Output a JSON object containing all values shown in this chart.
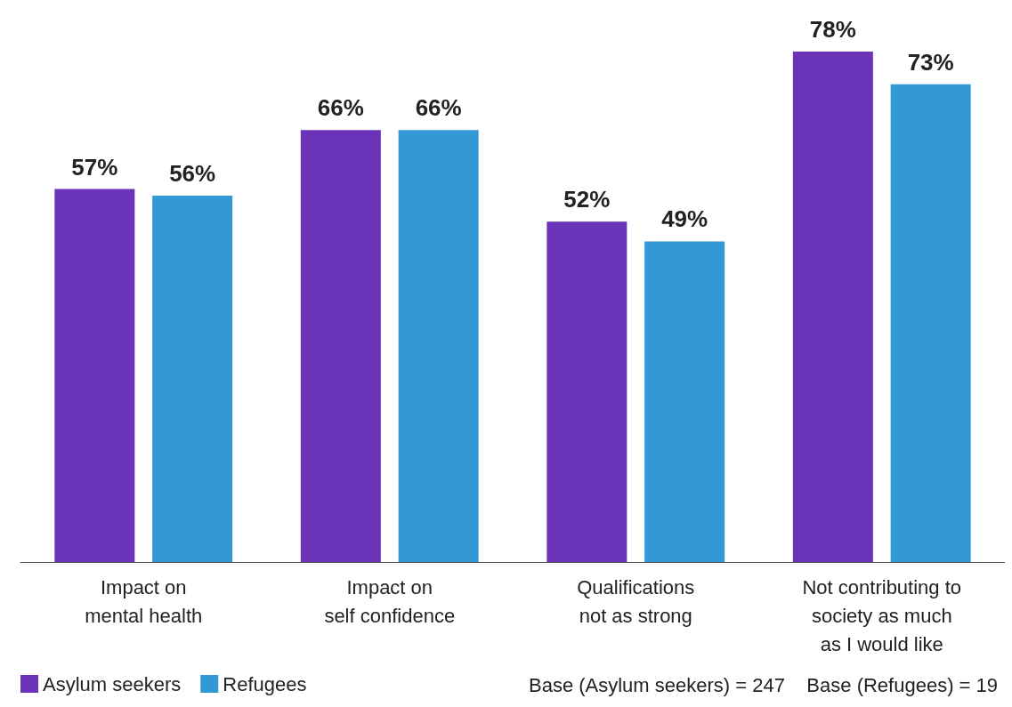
{
  "chart_data": {
    "type": "bar",
    "categories": [
      "Impact on\nmental health",
      "Impact on\nself confidence",
      "Qualifications\nnot as strong",
      "Not contributing to\nsociety as much\nas I would like"
    ],
    "series": [
      {
        "name": "Asylum seekers",
        "color": "#6a33b8",
        "values": [
          57,
          66,
          52,
          78
        ],
        "value_labels": [
          "57%",
          "66%",
          "52%",
          "78%"
        ]
      },
      {
        "name": "Refugees",
        "color": "#3399d6",
        "values": [
          56,
          66,
          49,
          73
        ],
        "value_labels": [
          "56%",
          "66%",
          "49%",
          "73%"
        ]
      }
    ],
    "legend": "bottom left",
    "annotations": [
      "Base (Asylum seekers) = 247",
      "Base (Refugees) = 19"
    ]
  }
}
